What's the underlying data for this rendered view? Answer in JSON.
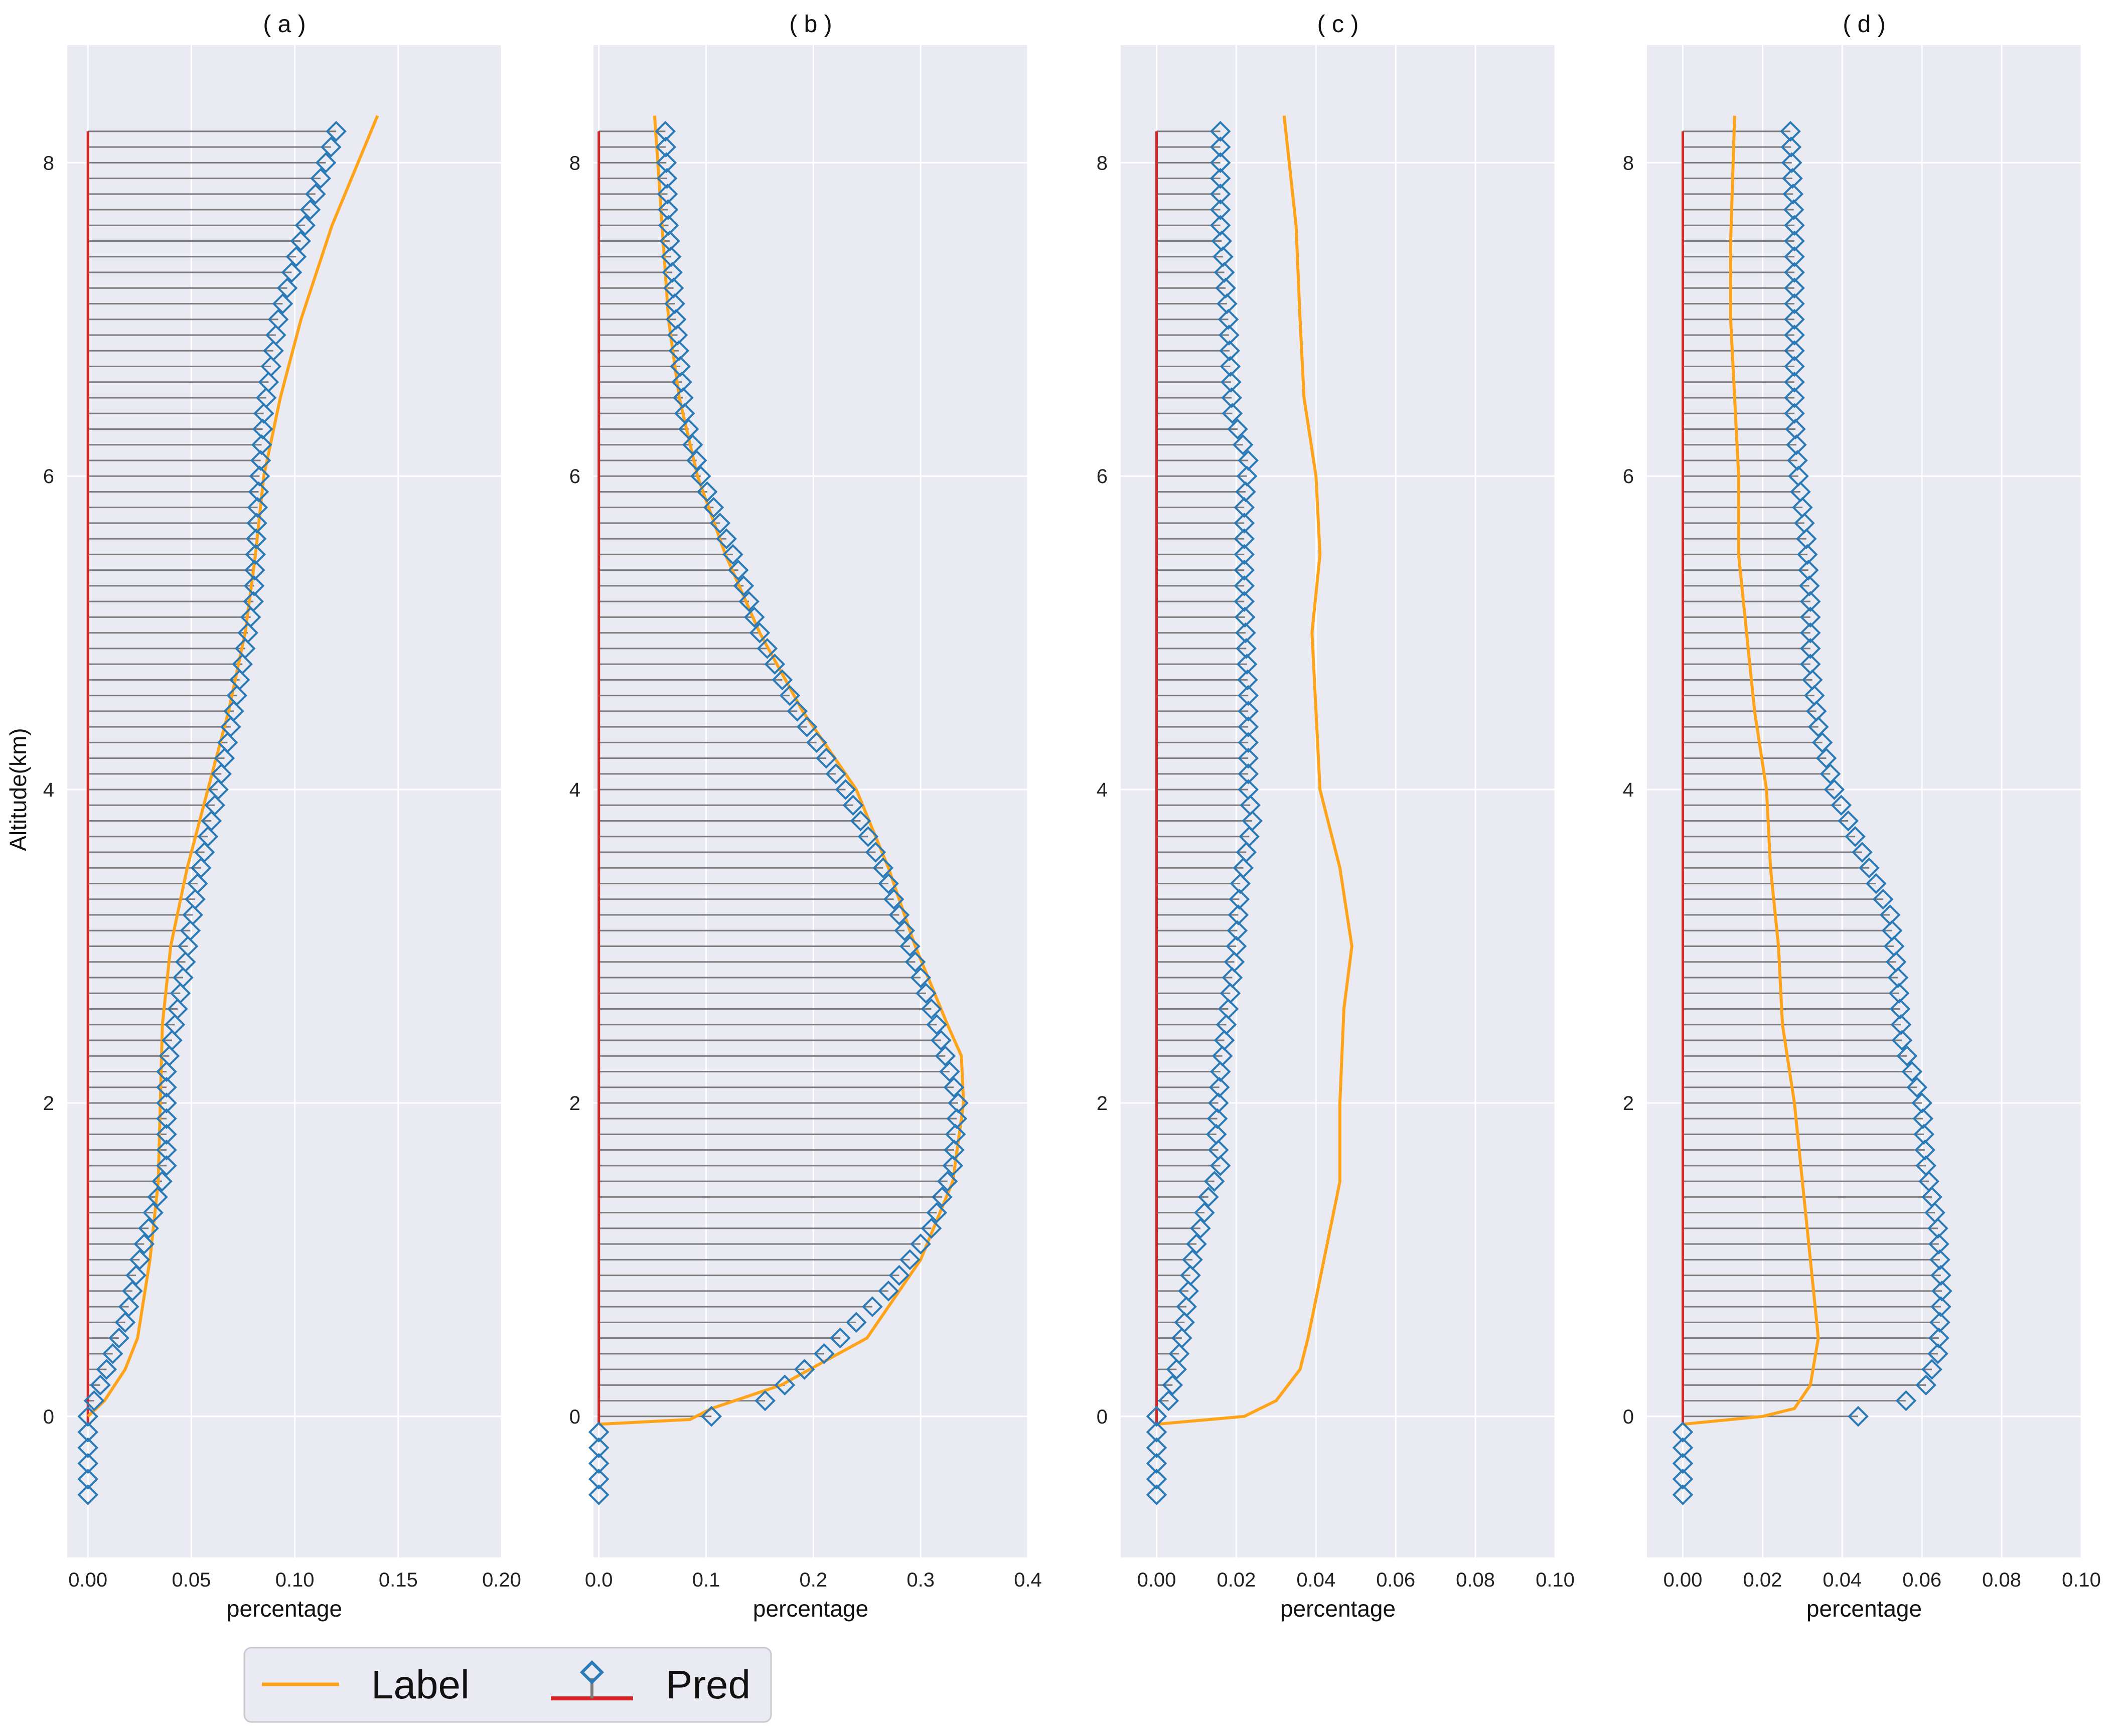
{
  "figure": {
    "ylabel": "Altitude(km)",
    "xlabel": "percentage"
  },
  "colors": {
    "axes_bg": "#eaeaf2",
    "grid": "#ffffff",
    "label_line": "#ffa319",
    "pred_marker": "#2a7ab7",
    "stem": "#7b7b7b",
    "baseline": "#d62728"
  },
  "legend": {
    "label_entry": "Label",
    "pred_entry": "Pred",
    "placement": "bottom-left"
  },
  "chart_data": [
    {
      "type": "line+stem",
      "title": "( a )",
      "xlabel": "percentage",
      "ylabel": "Altitude(km)",
      "xlim": [
        -0.01,
        0.2
      ],
      "ylim": [
        -0.9,
        8.75
      ],
      "xticks": [
        "0.00",
        "0.05",
        "0.10",
        "0.15",
        "0.20"
      ],
      "yticks": [
        "0",
        "2",
        "4",
        "6",
        "8"
      ],
      "pred": {
        "altitude": [
          8.2,
          7.6,
          7.0,
          6.4,
          5.8,
          5.2,
          4.6,
          4.0,
          3.4,
          2.8,
          2.2,
          1.6,
          1.0,
          0.6,
          0.2,
          0.0,
          -0.1,
          -0.5
        ],
        "value": [
          0.12,
          0.105,
          0.092,
          0.085,
          0.082,
          0.08,
          0.072,
          0.063,
          0.053,
          0.046,
          0.038,
          0.038,
          0.025,
          0.018,
          0.006,
          0.0,
          0.0,
          0.0
        ]
      },
      "label": {
        "altitude": [
          8.3,
          7.6,
          7.0,
          6.5,
          6.0,
          5.5,
          5.0,
          4.5,
          4.0,
          3.5,
          3.0,
          2.5,
          2.0,
          1.5,
          1.0,
          0.5,
          0.3,
          0.1,
          0.0
        ],
        "value": [
          0.14,
          0.118,
          0.103,
          0.093,
          0.085,
          0.081,
          0.076,
          0.068,
          0.058,
          0.048,
          0.04,
          0.036,
          0.035,
          0.034,
          0.03,
          0.024,
          0.018,
          0.008,
          0.0
        ]
      }
    },
    {
      "type": "line+stem",
      "title": "( b )",
      "xlabel": "percentage",
      "ylabel": "",
      "xlim": [
        -0.005,
        0.4
      ],
      "ylim": [
        -0.9,
        8.75
      ],
      "xticks": [
        "0.0",
        "0.1",
        "0.2",
        "0.3",
        "0.4"
      ],
      "yticks": [
        "0",
        "2",
        "4",
        "6",
        "8"
      ],
      "pred": {
        "altitude": [
          8.2,
          7.6,
          7.0,
          6.4,
          6.0,
          5.5,
          5.0,
          4.5,
          4.0,
          3.5,
          3.0,
          2.5,
          2.0,
          1.6,
          1.2,
          0.8,
          0.4,
          0.1,
          0.0,
          -0.1,
          -0.5
        ],
        "value": [
          0.062,
          0.065,
          0.072,
          0.08,
          0.095,
          0.125,
          0.15,
          0.185,
          0.23,
          0.265,
          0.29,
          0.315,
          0.335,
          0.33,
          0.31,
          0.27,
          0.21,
          0.155,
          0.105,
          0.0,
          0.0
        ]
      },
      "label": {
        "altitude": [
          8.3,
          7.5,
          7.0,
          6.5,
          6.0,
          5.5,
          5.0,
          4.5,
          4.0,
          3.5,
          3.0,
          2.5,
          2.3,
          2.0,
          1.5,
          1.0,
          0.5,
          0.2,
          0.05,
          -0.02,
          -0.05
        ],
        "value": [
          0.052,
          0.06,
          0.065,
          0.075,
          0.092,
          0.118,
          0.15,
          0.19,
          0.24,
          0.27,
          0.295,
          0.325,
          0.338,
          0.34,
          0.33,
          0.3,
          0.25,
          0.17,
          0.105,
          0.085,
          0.0
        ]
      }
    },
    {
      "type": "line+stem",
      "title": "( c )",
      "xlabel": "percentage",
      "ylabel": "",
      "xlim": [
        -0.009,
        0.1
      ],
      "ylim": [
        -0.9,
        8.75
      ],
      "xticks": [
        "0.00",
        "0.02",
        "0.04",
        "0.06",
        "0.08",
        "0.10"
      ],
      "yticks": [
        "0",
        "2",
        "4",
        "6",
        "8"
      ],
      "pred": {
        "altitude": [
          8.2,
          7.6,
          7.0,
          6.4,
          6.1,
          5.8,
          5.2,
          4.6,
          4.0,
          3.8,
          3.4,
          3.0,
          2.6,
          2.2,
          1.8,
          1.6,
          1.4,
          1.0,
          0.6,
          0.3,
          0.1,
          0.0,
          -0.1,
          -0.5
        ],
        "value": [
          0.016,
          0.016,
          0.018,
          0.019,
          0.023,
          0.022,
          0.022,
          0.023,
          0.023,
          0.024,
          0.021,
          0.02,
          0.018,
          0.016,
          0.015,
          0.016,
          0.013,
          0.009,
          0.007,
          0.005,
          0.003,
          0.0,
          0.0,
          0.0
        ]
      },
      "label": {
        "altitude": [
          8.3,
          7.6,
          7.0,
          6.5,
          6.0,
          5.5,
          5.0,
          4.5,
          4.0,
          3.5,
          3.0,
          2.6,
          2.0,
          1.5,
          1.0,
          0.5,
          0.3,
          0.1,
          0.0,
          -0.05
        ],
        "value": [
          0.032,
          0.035,
          0.036,
          0.037,
          0.04,
          0.041,
          0.039,
          0.04,
          0.041,
          0.046,
          0.049,
          0.047,
          0.046,
          0.046,
          0.042,
          0.038,
          0.036,
          0.03,
          0.022,
          0.0
        ]
      }
    },
    {
      "type": "line+stem",
      "title": "( d )",
      "xlabel": "percentage",
      "ylabel": "",
      "xlim": [
        -0.009,
        0.1
      ],
      "ylim": [
        -0.9,
        8.75
      ],
      "xticks": [
        "0.00",
        "0.02",
        "0.04",
        "0.06",
        "0.08",
        "0.10"
      ],
      "yticks": [
        "0",
        "2",
        "4",
        "6",
        "8"
      ],
      "pred": {
        "altitude": [
          8.2,
          7.6,
          7.0,
          6.4,
          6.0,
          5.6,
          5.2,
          4.8,
          4.4,
          4.0,
          3.6,
          3.2,
          2.8,
          2.4,
          2.0,
          1.6,
          1.2,
          0.8,
          0.4,
          0.2,
          0.1,
          0.0,
          -0.1,
          -0.5
        ],
        "value": [
          0.027,
          0.028,
          0.028,
          0.028,
          0.029,
          0.031,
          0.032,
          0.032,
          0.034,
          0.038,
          0.045,
          0.052,
          0.054,
          0.055,
          0.06,
          0.061,
          0.064,
          0.065,
          0.064,
          0.061,
          0.056,
          0.044,
          0.0,
          0.0
        ]
      },
      "label": {
        "altitude": [
          8.3,
          7.5,
          7.0,
          6.5,
          6.0,
          5.5,
          5.0,
          4.5,
          4.0,
          3.5,
          3.0,
          2.5,
          2.0,
          1.5,
          1.0,
          0.5,
          0.2,
          0.05,
          0.0,
          -0.05
        ],
        "value": [
          0.013,
          0.012,
          0.012,
          0.013,
          0.014,
          0.014,
          0.016,
          0.018,
          0.021,
          0.022,
          0.024,
          0.025,
          0.028,
          0.03,
          0.032,
          0.034,
          0.032,
          0.028,
          0.02,
          0.0
        ]
      }
    }
  ]
}
